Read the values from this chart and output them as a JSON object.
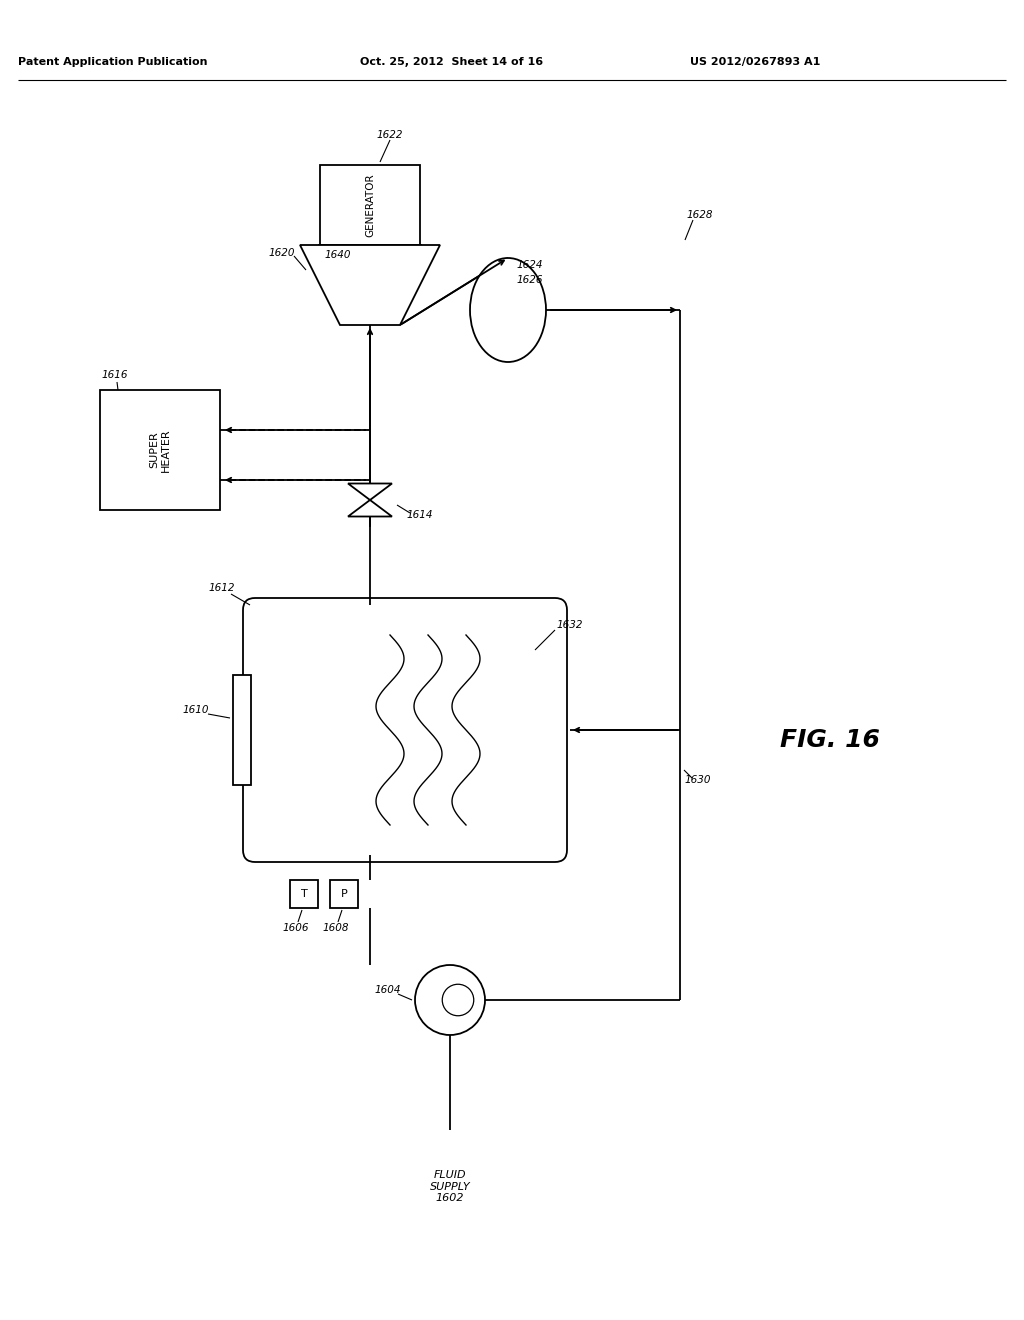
{
  "background": "#ffffff",
  "header_left": "Patent Application Publication",
  "header_mid": "Oct. 25, 2012  Sheet 14 of 16",
  "header_right": "US 2012/0267893 A1",
  "fig_label": "FIG. 16"
}
